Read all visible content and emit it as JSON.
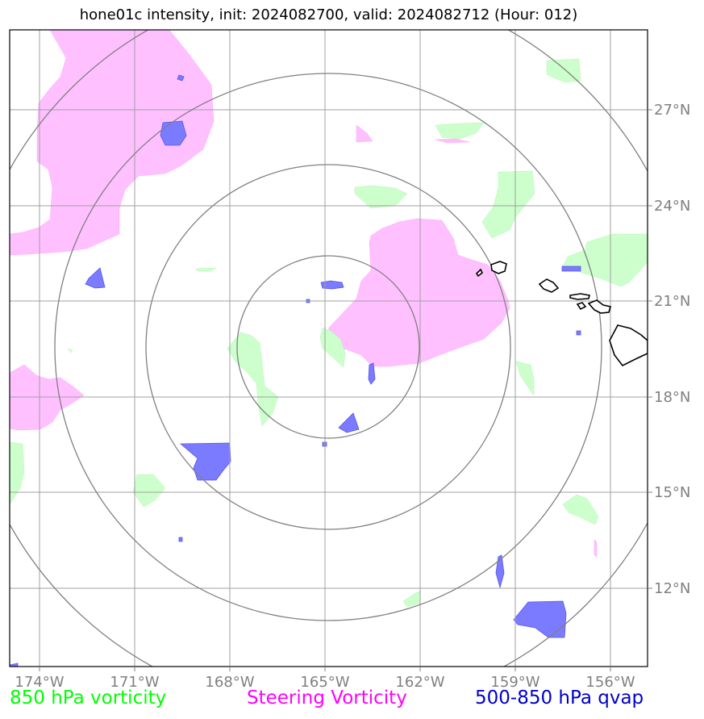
{
  "title": "hone01c intensity, init: 2024082700, valid: 2024082712 (Hour: 012)",
  "legend": {
    "green": {
      "label": "850 hPa vorticity",
      "color": "#00ff00"
    },
    "magenta": {
      "label": "Steering Vorticity",
      "color": "#ff00ff"
    },
    "blue": {
      "label": "500-850 hPa qvap",
      "color": "#0000cc"
    }
  },
  "lon_ticks": [
    "174°W",
    "171°W",
    "168°W",
    "165°W",
    "162°W",
    "159°W",
    "156°W"
  ],
  "lat_ticks": [
    "27°N",
    "24°N",
    "21°N",
    "18°N",
    "15°N",
    "12°N"
  ],
  "range_rings_count": 4,
  "colors": {
    "frame": "#000000",
    "grid": "#a0a0a0",
    "rings": "#808080",
    "tick_text": "#808080",
    "green_fill": "#ccffcc",
    "magenta_fill": "#ffc0ff",
    "blue_fill": "#7b7bff"
  }
}
